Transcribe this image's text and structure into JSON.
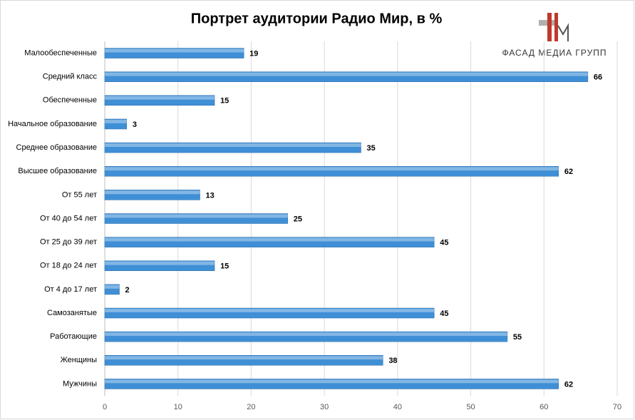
{
  "chart_data": {
    "type": "bar",
    "orientation": "horizontal",
    "title": "Портрет аудитории Радио Мир, в %",
    "categories": [
      "Малообеспеченные",
      "Средний класс",
      "Обеспеченные",
      "Начальное образование",
      "Среднее образование",
      "Высшее образование",
      "От 55 лет",
      "От 40 до 54 лет",
      "От 25 до 39 лет",
      "От 18 до 24 лет",
      "От 4 до 17 лет",
      "Самозанятые",
      "Работающие",
      "Женщины",
      "Мужчины"
    ],
    "values": [
      19,
      66,
      15,
      3,
      35,
      62,
      13,
      25,
      45,
      15,
      2,
      45,
      55,
      38,
      62
    ],
    "color": "#3f8fd6",
    "xlim": [
      0,
      70
    ],
    "xticks": [
      0,
      10,
      20,
      30,
      40,
      50,
      60,
      70
    ],
    "grid": true
  },
  "logo": {
    "text": "ФАСАД МЕДИА ГРУПП"
  }
}
